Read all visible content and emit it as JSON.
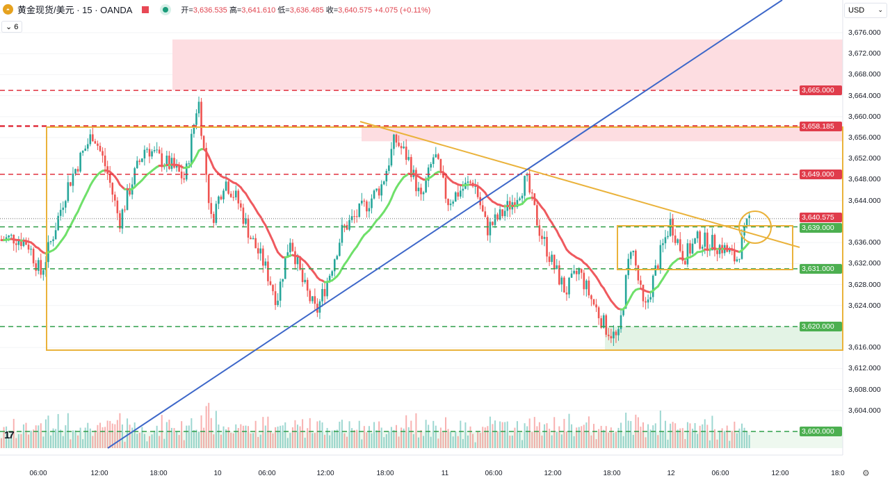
{
  "header": {
    "symbol": "黄金现货/美元 · 15 · OANDA",
    "open_label": "开=",
    "open": "3,636.535",
    "high_label": "高=",
    "high": "3,641.610",
    "low_label": "低=",
    "low": "3,636.485",
    "close_label": "收=",
    "close": "3,640.575",
    "change": "+4.075 (+0.11%)",
    "indicator_count": "6",
    "collapse_icon": "chevron-down"
  },
  "currency": {
    "value": "USD"
  },
  "colors": {
    "up": "#26a69a",
    "down": "#ef5350",
    "resistance": "#e0303f",
    "support": "#2e9e48",
    "box": "#eab23a",
    "trend": "#3d67c9"
  },
  "price_axis": [
    "3,676.000",
    "3,672.000",
    "3,668.000",
    "3,664.000",
    "3,660.000",
    "3,656.000",
    "3,652.000",
    "3,648.000",
    "3,644.000",
    "3,636.000",
    "3,632.000",
    "3,628.000",
    "3,624.000",
    "3,616.000",
    "3,612.000",
    "3,608.000",
    "3,604.000"
  ],
  "price_tags": [
    {
      "label": "3,665.000",
      "price": 3665,
      "kind": "resistance"
    },
    {
      "label": "3,658.185",
      "price": 3658.185,
      "kind": "resistance"
    },
    {
      "label": "3,649.000",
      "price": 3649,
      "kind": "resistance"
    },
    {
      "label": "3,640.575",
      "price": 3640.575,
      "kind": "last"
    },
    {
      "label": "3,639.000",
      "price": 3639,
      "kind": "support"
    },
    {
      "label": "3,631.000",
      "price": 3631,
      "kind": "support"
    },
    {
      "label": "3,620.000",
      "price": 3620,
      "kind": "support"
    },
    {
      "label": "3,600.000",
      "price": 3600,
      "kind": "support"
    }
  ],
  "time_axis": [
    "06:00",
    "12:00",
    "18:00",
    "10",
    "06:00",
    "12:00",
    "18:00",
    "11",
    "06:00",
    "12:00",
    "18:00",
    "12",
    "06:00",
    "12:00",
    "18:0"
  ],
  "price_path": [
    3636.5,
    3637,
    3636,
    3630,
    3638,
    3646.5,
    3652,
    3657,
    3650,
    3640,
    3648,
    3654.4,
    3652,
    3650.5,
    3648,
    3663.7,
    3640,
    3648,
    3644,
    3637,
    3632,
    3625,
    3637,
    3628,
    3622.6,
    3630,
    3638.5,
    3641,
    3643.8,
    3647,
    3655.7,
    3652,
    3643.8,
    3653,
    3643.8,
    3646,
    3647.8,
    3638.5,
    3641,
    3644,
    3647.8,
    3638.5,
    3632,
    3626.6,
    3630.6,
    3625,
    3620,
    3617.4,
    3636,
    3622.6,
    3632,
    3640,
    3633.2,
    3636.5,
    3636,
    3635,
    3632.6,
    3640.6
  ],
  "branding": {
    "logo": "TV"
  }
}
